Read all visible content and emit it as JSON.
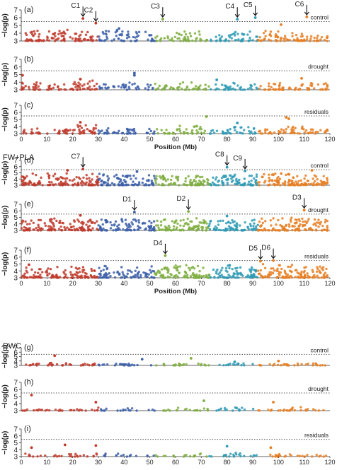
{
  "figure": {
    "x_axis_title": "Position (Mb)",
    "y_axis_title": "−log(p)",
    "x_ticks": [
      0,
      10,
      20,
      30,
      40,
      50,
      60,
      70,
      80,
      90,
      100,
      110,
      120
    ],
    "y_ticks": [
      3,
      4,
      5,
      6,
      7
    ],
    "threshold": 5.5,
    "colors": {
      "chr_palette": [
        "#c0392b",
        "#3b5ea8",
        "#7fae3f",
        "#2e9bb5",
        "#e67e22"
      ],
      "threshold_line": "#555555",
      "axis": "#333333"
    }
  },
  "sections": [
    {
      "title": "",
      "panels": [
        "a",
        "b",
        "c"
      ]
    },
    {
      "title": "FW+PLA",
      "panels": [
        "d",
        "e",
        "f"
      ]
    },
    {
      "title": "RWC",
      "panels": [
        "g",
        "h",
        "i"
      ]
    }
  ],
  "chart_data": [
    {
      "type": "scatter",
      "panel": "(a)",
      "label": "control",
      "xlabel": "",
      "ylabel": "−log(p)",
      "xlim": [
        0,
        120
      ],
      "ylim": [
        3,
        7
      ],
      "threshold": 5.5,
      "annotations": [
        {
          "text": "C1",
          "x": 24
        },
        {
          "text": "C2",
          "x": 29
        },
        {
          "text": "C3",
          "x": 55
        },
        {
          "text": "C4",
          "x": 84
        },
        {
          "text": "C5",
          "x": 91
        },
        {
          "text": "C6",
          "x": 111
        }
      ],
      "peaks": [
        {
          "x": 24,
          "y": 5.9
        },
        {
          "x": 29,
          "y": 5.3
        },
        {
          "x": 55,
          "y": 5.8
        },
        {
          "x": 84,
          "y": 5.8
        },
        {
          "x": 91,
          "y": 6.0
        },
        {
          "x": 111,
          "y": 6.1
        },
        {
          "x": 101,
          "y": 5.1
        },
        {
          "x": 38,
          "y": 4.6
        }
      ],
      "density": [
        2.4,
        2.6,
        2.2,
        2.6,
        2.2,
        1.6,
        2.4,
        1.6,
        2.2,
        2.4,
        2.0,
        1.6,
        2.0
      ]
    },
    {
      "type": "scatter",
      "panel": "(b)",
      "label": "drought",
      "xlabel": "",
      "ylabel": "−log(p)",
      "xlim": [
        0,
        120
      ],
      "ylim": [
        3,
        7
      ],
      "threshold": 5.5,
      "annotations": [],
      "peaks": [
        {
          "x": 0.5,
          "y": 4.9
        },
        {
          "x": 44,
          "y": 5.2
        },
        {
          "x": 44,
          "y": 4.9
        },
        {
          "x": 23,
          "y": 4.4
        },
        {
          "x": 76,
          "y": 4.3
        },
        {
          "x": 109,
          "y": 4.5
        }
      ],
      "density": [
        2.0,
        1.6,
        2.4,
        1.4,
        1.8,
        1.6,
        2.0,
        1.6,
        1.8,
        1.6,
        1.8,
        1.6,
        1.4
      ]
    },
    {
      "type": "scatter",
      "panel": "(c)",
      "label": "residuals",
      "xlabel": "Position (Mb)",
      "ylabel": "−log(p)",
      "xlim": [
        0,
        120
      ],
      "ylim": [
        3,
        7
      ],
      "threshold": 5.5,
      "annotations": [],
      "peaks": [
        {
          "x": 72,
          "y": 5.4
        },
        {
          "x": 103,
          "y": 5.3
        },
        {
          "x": 104,
          "y": 5.1
        },
        {
          "x": 23,
          "y": 4.6
        },
        {
          "x": 84,
          "y": 4.5
        }
      ],
      "density": [
        1.4,
        1.6,
        2.2,
        1.4,
        1.6,
        1.2,
        2.0,
        1.4,
        1.8,
        1.4,
        2.0,
        1.4,
        1.2
      ]
    },
    {
      "type": "scatter",
      "panel": "(d)",
      "label": "control",
      "xlabel": "",
      "ylabel": "−log(p)",
      "xlim": [
        0,
        120
      ],
      "ylim": [
        3,
        7
      ],
      "threshold": 5.5,
      "annotations": [
        {
          "text": "C7",
          "x": 24
        },
        {
          "text": "C8",
          "x": 80
        },
        {
          "text": "C9",
          "x": 87
        }
      ],
      "peaks": [
        {
          "x": 24,
          "y": 5.6
        },
        {
          "x": 80,
          "y": 5.9
        },
        {
          "x": 87,
          "y": 5.3
        },
        {
          "x": 113,
          "y": 5.4
        },
        {
          "x": 18,
          "y": 5.4
        },
        {
          "x": 45,
          "y": 5.2
        }
      ],
      "density": [
        3.4,
        3.6,
        3.4,
        3.4,
        3.0,
        2.8,
        3.4,
        3.0,
        3.4,
        3.4,
        3.6,
        3.0,
        2.6
      ]
    },
    {
      "type": "scatter",
      "panel": "(e)",
      "label": "drought",
      "xlabel": "",
      "ylabel": "−log(p)",
      "xlim": [
        0,
        120
      ],
      "ylim": [
        3,
        7
      ],
      "threshold": 5.5,
      "annotations": [
        {
          "text": "D1",
          "x": 44
        },
        {
          "text": "D2",
          "x": 65
        },
        {
          "text": "D3",
          "x": 110
        }
      ],
      "peaks": [
        {
          "x": 44,
          "y": 5.8
        },
        {
          "x": 65,
          "y": 5.9
        },
        {
          "x": 110,
          "y": 6.1
        },
        {
          "x": 23,
          "y": 5.3
        },
        {
          "x": 80,
          "y": 5.2
        }
      ],
      "density": [
        3.4,
        3.4,
        3.2,
        3.4,
        3.0,
        3.2,
        3.4,
        3.0,
        3.2,
        3.4,
        3.6,
        3.2,
        2.6
      ]
    },
    {
      "type": "scatter",
      "panel": "(f)",
      "label": "residuals",
      "xlabel": "Position (Mb)",
      "ylabel": "−log(p)",
      "xlim": [
        0,
        120
      ],
      "ylim": [
        3,
        7
      ],
      "threshold": 5.5,
      "annotations": [
        {
          "text": "D4",
          "x": 56
        },
        {
          "text": "D5",
          "x": 93
        },
        {
          "text": "D6",
          "x": 98
        }
      ],
      "peaks": [
        {
          "x": 56,
          "y": 6.2
        },
        {
          "x": 93,
          "y": 5.4
        },
        {
          "x": 98,
          "y": 5.5
        },
        {
          "x": 3,
          "y": 4.9
        },
        {
          "x": 81,
          "y": 4.8
        }
      ],
      "density": [
        3.0,
        3.0,
        3.2,
        3.2,
        2.8,
        3.0,
        3.6,
        2.8,
        3.2,
        3.6,
        3.4,
        3.0,
        2.6
      ]
    },
    {
      "type": "scatter",
      "panel": "(g)",
      "label": "control",
      "xlabel": "",
      "ylabel": "−log(p)",
      "xlim": [
        0,
        120
      ],
      "ylim": [
        3,
        7
      ],
      "threshold": 5.5,
      "annotations": [],
      "peaks": [
        {
          "x": 13,
          "y": 5.2
        },
        {
          "x": 66,
          "y": 4.6
        },
        {
          "x": 47,
          "y": 4.4
        },
        {
          "x": 100,
          "y": 4.0
        },
        {
          "x": 83,
          "y": 3.8
        }
      ],
      "density": [
        0.8,
        1.2,
        0.8,
        0.8,
        0.8,
        0.6,
        1.0,
        0.4,
        0.8,
        0.6,
        0.8,
        0.8,
        0.6
      ]
    },
    {
      "type": "scatter",
      "panel": "(h)",
      "label": "drought",
      "xlabel": "",
      "ylabel": "−log(p)",
      "xlim": [
        0,
        120
      ],
      "ylim": [
        3,
        7
      ],
      "threshold": 5.5,
      "annotations": [],
      "peaks": [
        {
          "x": 4,
          "y": 5.2
        },
        {
          "x": 29,
          "y": 4.2
        },
        {
          "x": 71,
          "y": 4.4
        },
        {
          "x": 98,
          "y": 4.2
        }
      ],
      "density": [
        0.8,
        0.8,
        0.8,
        0.8,
        0.6,
        0.6,
        0.8,
        0.8,
        0.8,
        0.6,
        1.0,
        0.6,
        0.6
      ]
    },
    {
      "type": "scatter",
      "panel": "(i)",
      "label": "residuals",
      "xlabel": "Position (Mb)",
      "ylabel": "−log(p)",
      "xlim": [
        0,
        120
      ],
      "ylim": [
        3,
        7
      ],
      "threshold": 5.5,
      "annotations": [],
      "peaks": [
        {
          "x": 17,
          "y": 4.7
        },
        {
          "x": 29,
          "y": 4.6
        },
        {
          "x": 4,
          "y": 4.3
        },
        {
          "x": 80,
          "y": 4.5
        },
        {
          "x": 97,
          "y": 4.3
        }
      ],
      "density": [
        0.8,
        0.8,
        0.8,
        0.8,
        0.6,
        0.6,
        0.8,
        0.6,
        1.0,
        0.8,
        0.8,
        0.6,
        0.6
      ]
    }
  ]
}
